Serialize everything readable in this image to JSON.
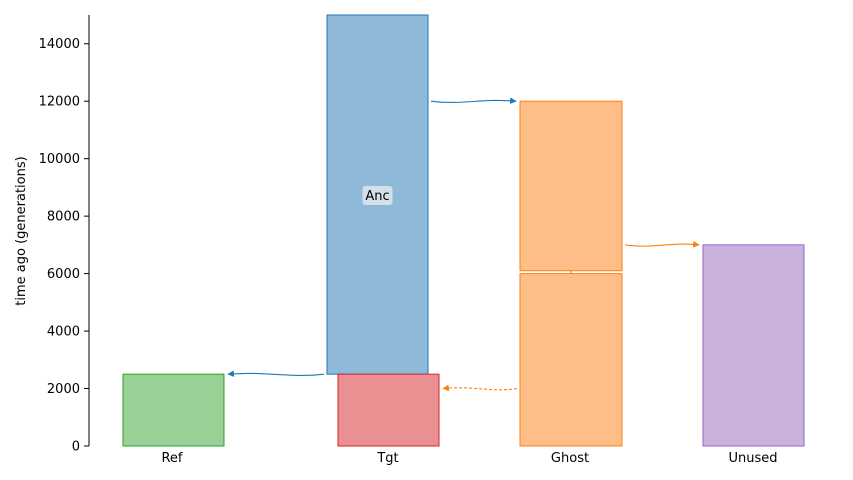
{
  "chart_data": {
    "type": "demography",
    "ylabel": "time ago (generations)",
    "ylim": [
      0,
      15000
    ],
    "yticks": [
      0,
      2000,
      4000,
      6000,
      8000,
      10000,
      12000,
      14000
    ],
    "populations": [
      {
        "name": "Ref",
        "color": "#2ca02c",
        "fill": "#98d095",
        "epochs": [
          {
            "start": 0,
            "end": 2500
          }
        ]
      },
      {
        "name": "Tgt",
        "color": "#d62728",
        "fill": "#ea9092",
        "epochs": [
          {
            "start": 0,
            "end": 2500
          }
        ]
      },
      {
        "name": "Ghost",
        "color": "#ff7f0e",
        "fill": "#ffbe87",
        "epochs": [
          {
            "start": 0,
            "end": 6000
          },
          {
            "start": 6100,
            "end": 12000
          }
        ]
      },
      {
        "name": "Unused",
        "color": "#9467bd",
        "fill": "#c9b2de",
        "epochs": [
          {
            "start": 0,
            "end": 7000
          }
        ]
      }
    ],
    "ancestor": {
      "name": "Anc",
      "label": "Anc",
      "color": "#1f77b4",
      "fill": "#8fb9d9",
      "start": 2500,
      "end": 15000
    },
    "arrows": [
      {
        "from": "Anc",
        "to": "Ref",
        "time": 2500,
        "style": "solid",
        "color": "#1f77b4"
      },
      {
        "from": "Anc",
        "to": "Ghost",
        "time": 12000,
        "style": "solid",
        "color": "#1f77b4"
      },
      {
        "from": "Ghost",
        "to": "Unused",
        "time": 7000,
        "style": "solid",
        "color": "#ff7f0e"
      },
      {
        "from": "Ghost",
        "to": "Tgt",
        "time": 2000,
        "style": "dashed",
        "color": "#ff7f0e"
      }
    ]
  }
}
